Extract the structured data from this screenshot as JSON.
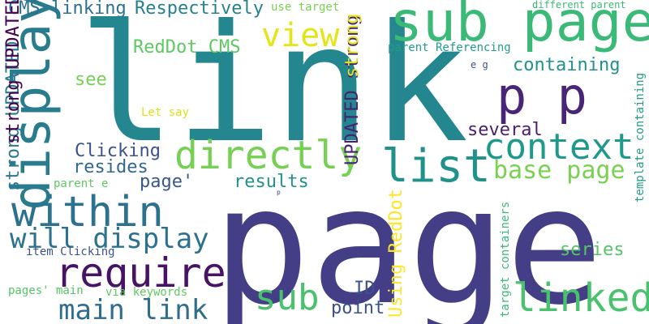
{
  "words": [
    {
      "text": "page",
      "color": "#433e85"
    },
    {
      "text": "link",
      "color": "#24868e"
    },
    {
      "text": "sub page",
      "color": "#3aba76"
    },
    {
      "text": "p p",
      "color": "#482576"
    },
    {
      "text": "display",
      "color": "#287c8e"
    },
    {
      "text": "directly",
      "color": "#75d054"
    },
    {
      "text": "list",
      "color": "#21918c"
    },
    {
      "text": "context",
      "color": "#1f998a"
    },
    {
      "text": "within",
      "color": "#2c728e"
    },
    {
      "text": "require",
      "color": "#471365"
    },
    {
      "text": "linked",
      "color": "#4ac16d"
    },
    {
      "text": "will display",
      "color": "#2c728e"
    },
    {
      "text": "main link",
      "color": "#2f6c8e"
    },
    {
      "text": "sub",
      "color": "#4ac16d"
    },
    {
      "text": "view",
      "color": "#e5e419"
    },
    {
      "text": "base page",
      "color": "#7ad151"
    },
    {
      "text": "Respectively",
      "color": "#26818e"
    },
    {
      "text": "CMS linking",
      "color": "#2c728e"
    },
    {
      "text": "RedDot CMS",
      "color": "#5ec962"
    },
    {
      "text": "containing",
      "color": "#21918c"
    },
    {
      "text": "several",
      "color": "#481f70"
    },
    {
      "text": "Clicking",
      "color": "#3b528b"
    },
    {
      "text": "resides",
      "color": "#31688e"
    },
    {
      "text": "page'",
      "color": "#38588c"
    },
    {
      "text": "results",
      "color": "#21918c"
    },
    {
      "text": "see",
      "color": "#75d054"
    },
    {
      "text": "series",
      "color": "#54c568"
    },
    {
      "text": "point",
      "color": "#3b528b"
    },
    {
      "text": "ID",
      "color": "#3b528b"
    },
    {
      "text": "strong UPDATED",
      "color": "#2a788e"
    },
    {
      "text": "UPDATED strong",
      "color": "#482173"
    },
    {
      "text": "strong",
      "color": "#e5e419"
    },
    {
      "text": "Using RedDot",
      "color": "#fde725"
    },
    {
      "text": "strong UPDATED",
      "color": "#440154"
    },
    {
      "text": "use target",
      "color": "#7ad151"
    },
    {
      "text": "different parent",
      "color": "#3aba76"
    },
    {
      "text": "parent Referencing",
      "color": "#1f9e89"
    },
    {
      "text": "e g",
      "color": "#3b528b"
    },
    {
      "text": "Let say",
      "color": "#dde318"
    },
    {
      "text": "parent e",
      "color": "#5ec962"
    },
    {
      "text": "item Clicking",
      "color": "#3b528b"
    },
    {
      "text": "pages' main",
      "color": "#54c568"
    },
    {
      "text": "via keywords",
      "color": "#5ec962"
    },
    {
      "text": "target containers",
      "color": "#3aba76"
    },
    {
      "text": "template containing",
      "color": "#1f9e89"
    },
    {
      "text": "p",
      "color": "#433e85"
    }
  ]
}
